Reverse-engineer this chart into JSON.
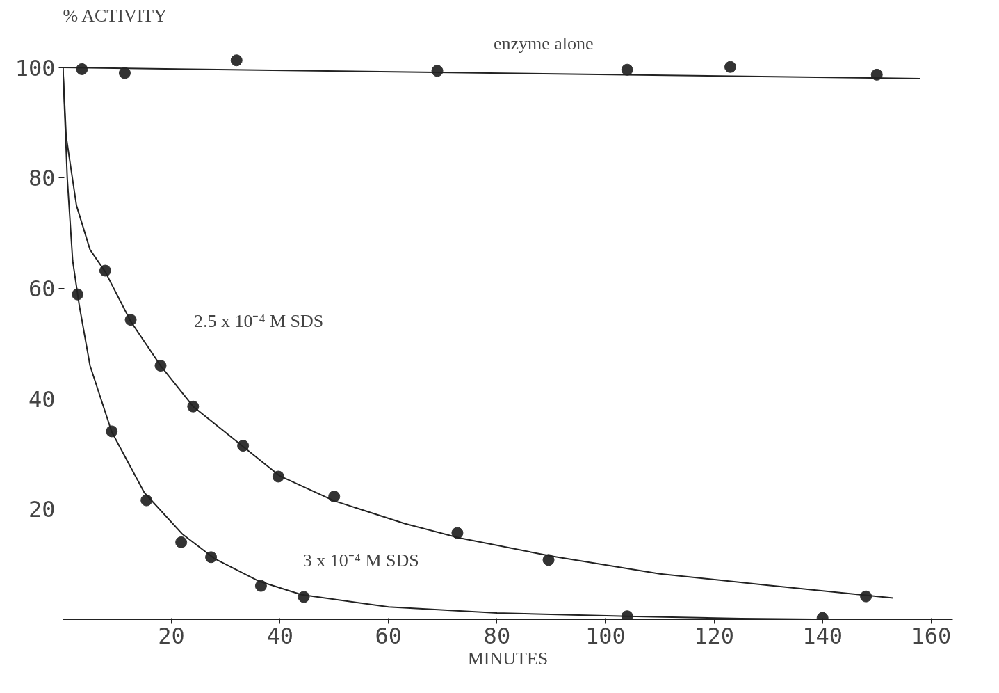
{
  "chart_data": {
    "type": "scatter",
    "xlabel": "MINUTES",
    "ylabel": "% ACTIVITY",
    "xlim": [
      0,
      164
    ],
    "ylim": [
      0,
      107
    ],
    "xticks": [
      20,
      40,
      60,
      80,
      100,
      120,
      140,
      160
    ],
    "yticks": [
      20,
      40,
      60,
      80,
      100
    ],
    "grid": false,
    "series": [
      {
        "marker": "circle",
        "color": "#333333",
        "x": [
          3.5,
          11.4,
          32,
          69,
          104,
          123,
          150
        ],
        "values": [
          99.7,
          99,
          101.3,
          99.4,
          99.6,
          100.1,
          98.7
        ]
      },
      {
        "marker": "circle",
        "color": "#333333",
        "x": [
          7.8,
          12.5,
          18,
          24,
          33.2,
          39.7,
          50,
          72.7,
          89.5,
          148
        ],
        "values": [
          63.2,
          54.3,
          46,
          38.6,
          31.5,
          25.9,
          22.3,
          15.7,
          10.8,
          4.2
        ]
      },
      {
        "marker": "circle",
        "color": "#333333",
        "x": [
          2.7,
          9,
          15.4,
          21.8,
          27.3,
          36.5,
          44.4,
          104,
          140
        ],
        "values": [
          58.9,
          34.1,
          21.6,
          14,
          11.3,
          6.1,
          4.1,
          0.6,
          0.3
        ]
      },
      {
        "type": "line",
        "color": "#222222",
        "x": [
          0,
          158
        ],
        "values": [
          100,
          98
        ]
      },
      {
        "type": "line",
        "color": "#222222",
        "x": [
          0,
          0.6,
          2.5,
          5,
          7.8,
          12.5,
          18,
          24,
          33,
          40,
          50,
          63,
          73,
          90,
          110,
          130,
          153
        ],
        "values": [
          100,
          87.5,
          75,
          67,
          63,
          54,
          46,
          38.6,
          31.5,
          26,
          21.5,
          17.4,
          14.8,
          11.5,
          8.3,
          6.2,
          3.9
        ]
      },
      {
        "type": "line",
        "color": "#222222",
        "x": [
          0,
          0.8,
          1.8,
          3,
          5,
          9,
          15,
          22,
          28,
          36,
          44,
          60,
          80,
          104,
          125,
          145
        ],
        "values": [
          100,
          80,
          65,
          57,
          46,
          34,
          23,
          15.5,
          11,
          7,
          4.5,
          2.3,
          1.2,
          0.6,
          0.2,
          0
        ]
      }
    ],
    "annotations": [
      "enzyme alone",
      "2.5 x 10⁻⁴ M SDS",
      "3 x 10⁻⁴ M SDS"
    ]
  }
}
